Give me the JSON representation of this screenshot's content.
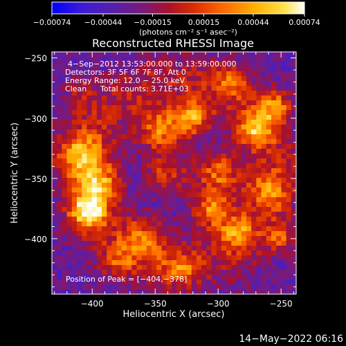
{
  "chart_data": {
    "type": "heatmap",
    "title": "Reconstructed RHESSI Image",
    "xlabel": "Heliocentric X (arcsec)",
    "ylabel": "Heliocentric Y (arcsec)",
    "xlim": [
      -432,
      -238
    ],
    "ylim": [
      -446,
      -245
    ],
    "x_ticks": [
      -400,
      -350,
      -300,
      -250
    ],
    "x_tick_labels": [
      "−400",
      "−350",
      "−300",
      "−250"
    ],
    "y_ticks": [
      -250,
      -300,
      -350,
      -400
    ],
    "y_tick_labels": [
      "−250",
      "−300",
      "−350",
      "−400"
    ],
    "colormap": "rhessi-heat (blue → purple → red → orange → yellow → white)",
    "colorbar": {
      "range": [
        -0.00074,
        0.00074
      ],
      "ticks": [
        -0.00074,
        -0.00044,
        -0.00015,
        0.00015,
        0.00044,
        0.00074
      ],
      "tick_labels": [
        "−0.00074",
        "−0.00044",
        "−0.00015",
        "0.00015",
        "0.00044",
        "0.00074"
      ],
      "unit_label": "(photons cm⁻² s⁻¹ asec⁻²)",
      "location": "top"
    },
    "annotations": {
      "time_range": "4−Sep−2012 13:53:00.000 to 13:59:00.000",
      "detectors": "Detectors: 3F 5F 6F 7F 8F, Att 0",
      "energy_range": "Energy Range: 12.0 − 25.0 keV",
      "algorithm": "Clean",
      "total_counts": "Total counts: 3.71E+03",
      "peak": "Position of Peak = [−404,−378]"
    },
    "peak_position": [
      -404,
      -378
    ],
    "image_grid": {
      "cols": 49,
      "rows": 50,
      "note": "per-pixel intensities are not readable individually; grid is synthesized to reproduce the ring-like emission pattern"
    }
  },
  "timestamp": "14−May−2022 06:16",
  "colors": {
    "background": "#000000",
    "foreground": "#ffffff",
    "colormap_stops": [
      "#0000ff",
      "#3c1bd6",
      "#5a1ea8",
      "#7a1a7a",
      "#a8102e",
      "#d82c00",
      "#ff6a00",
      "#ffae00",
      "#ffe24a",
      "#ffffff"
    ]
  }
}
